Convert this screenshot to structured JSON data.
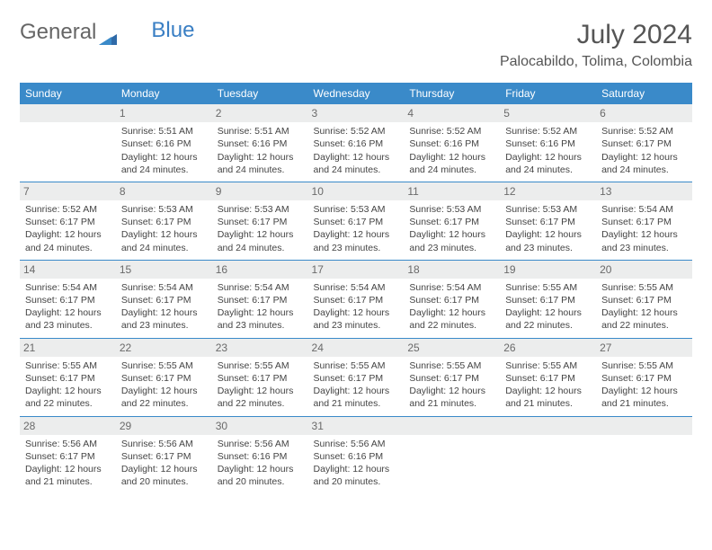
{
  "logo": {
    "word1": "General",
    "word2": "Blue"
  },
  "title": "July 2024",
  "subtitle": "Palocabildo, Tolima, Colombia",
  "colors": {
    "header_bg": "#3a8ac9",
    "header_text": "#ffffff",
    "daynum_bg": "#eceded",
    "daynum_text": "#6a6a6a",
    "cell_text": "#444444",
    "rule": "#3a8ac9",
    "logo_gray": "#666666",
    "logo_blue": "#3a7fc4"
  },
  "weekdays": [
    "Sunday",
    "Monday",
    "Tuesday",
    "Wednesday",
    "Thursday",
    "Friday",
    "Saturday"
  ],
  "weeks": [
    [
      {
        "day": "",
        "lines": []
      },
      {
        "day": "1",
        "lines": [
          "Sunrise: 5:51 AM",
          "Sunset: 6:16 PM",
          "Daylight: 12 hours",
          "and 24 minutes."
        ]
      },
      {
        "day": "2",
        "lines": [
          "Sunrise: 5:51 AM",
          "Sunset: 6:16 PM",
          "Daylight: 12 hours",
          "and 24 minutes."
        ]
      },
      {
        "day": "3",
        "lines": [
          "Sunrise: 5:52 AM",
          "Sunset: 6:16 PM",
          "Daylight: 12 hours",
          "and 24 minutes."
        ]
      },
      {
        "day": "4",
        "lines": [
          "Sunrise: 5:52 AM",
          "Sunset: 6:16 PM",
          "Daylight: 12 hours",
          "and 24 minutes."
        ]
      },
      {
        "day": "5",
        "lines": [
          "Sunrise: 5:52 AM",
          "Sunset: 6:16 PM",
          "Daylight: 12 hours",
          "and 24 minutes."
        ]
      },
      {
        "day": "6",
        "lines": [
          "Sunrise: 5:52 AM",
          "Sunset: 6:17 PM",
          "Daylight: 12 hours",
          "and 24 minutes."
        ]
      }
    ],
    [
      {
        "day": "7",
        "lines": [
          "Sunrise: 5:52 AM",
          "Sunset: 6:17 PM",
          "Daylight: 12 hours",
          "and 24 minutes."
        ]
      },
      {
        "day": "8",
        "lines": [
          "Sunrise: 5:53 AM",
          "Sunset: 6:17 PM",
          "Daylight: 12 hours",
          "and 24 minutes."
        ]
      },
      {
        "day": "9",
        "lines": [
          "Sunrise: 5:53 AM",
          "Sunset: 6:17 PM",
          "Daylight: 12 hours",
          "and 24 minutes."
        ]
      },
      {
        "day": "10",
        "lines": [
          "Sunrise: 5:53 AM",
          "Sunset: 6:17 PM",
          "Daylight: 12 hours",
          "and 23 minutes."
        ]
      },
      {
        "day": "11",
        "lines": [
          "Sunrise: 5:53 AM",
          "Sunset: 6:17 PM",
          "Daylight: 12 hours",
          "and 23 minutes."
        ]
      },
      {
        "day": "12",
        "lines": [
          "Sunrise: 5:53 AM",
          "Sunset: 6:17 PM",
          "Daylight: 12 hours",
          "and 23 minutes."
        ]
      },
      {
        "day": "13",
        "lines": [
          "Sunrise: 5:54 AM",
          "Sunset: 6:17 PM",
          "Daylight: 12 hours",
          "and 23 minutes."
        ]
      }
    ],
    [
      {
        "day": "14",
        "lines": [
          "Sunrise: 5:54 AM",
          "Sunset: 6:17 PM",
          "Daylight: 12 hours",
          "and 23 minutes."
        ]
      },
      {
        "day": "15",
        "lines": [
          "Sunrise: 5:54 AM",
          "Sunset: 6:17 PM",
          "Daylight: 12 hours",
          "and 23 minutes."
        ]
      },
      {
        "day": "16",
        "lines": [
          "Sunrise: 5:54 AM",
          "Sunset: 6:17 PM",
          "Daylight: 12 hours",
          "and 23 minutes."
        ]
      },
      {
        "day": "17",
        "lines": [
          "Sunrise: 5:54 AM",
          "Sunset: 6:17 PM",
          "Daylight: 12 hours",
          "and 23 minutes."
        ]
      },
      {
        "day": "18",
        "lines": [
          "Sunrise: 5:54 AM",
          "Sunset: 6:17 PM",
          "Daylight: 12 hours",
          "and 22 minutes."
        ]
      },
      {
        "day": "19",
        "lines": [
          "Sunrise: 5:55 AM",
          "Sunset: 6:17 PM",
          "Daylight: 12 hours",
          "and 22 minutes."
        ]
      },
      {
        "day": "20",
        "lines": [
          "Sunrise: 5:55 AM",
          "Sunset: 6:17 PM",
          "Daylight: 12 hours",
          "and 22 minutes."
        ]
      }
    ],
    [
      {
        "day": "21",
        "lines": [
          "Sunrise: 5:55 AM",
          "Sunset: 6:17 PM",
          "Daylight: 12 hours",
          "and 22 minutes."
        ]
      },
      {
        "day": "22",
        "lines": [
          "Sunrise: 5:55 AM",
          "Sunset: 6:17 PM",
          "Daylight: 12 hours",
          "and 22 minutes."
        ]
      },
      {
        "day": "23",
        "lines": [
          "Sunrise: 5:55 AM",
          "Sunset: 6:17 PM",
          "Daylight: 12 hours",
          "and 22 minutes."
        ]
      },
      {
        "day": "24",
        "lines": [
          "Sunrise: 5:55 AM",
          "Sunset: 6:17 PM",
          "Daylight: 12 hours",
          "and 21 minutes."
        ]
      },
      {
        "day": "25",
        "lines": [
          "Sunrise: 5:55 AM",
          "Sunset: 6:17 PM",
          "Daylight: 12 hours",
          "and 21 minutes."
        ]
      },
      {
        "day": "26",
        "lines": [
          "Sunrise: 5:55 AM",
          "Sunset: 6:17 PM",
          "Daylight: 12 hours",
          "and 21 minutes."
        ]
      },
      {
        "day": "27",
        "lines": [
          "Sunrise: 5:55 AM",
          "Sunset: 6:17 PM",
          "Daylight: 12 hours",
          "and 21 minutes."
        ]
      }
    ],
    [
      {
        "day": "28",
        "lines": [
          "Sunrise: 5:56 AM",
          "Sunset: 6:17 PM",
          "Daylight: 12 hours",
          "and 21 minutes."
        ]
      },
      {
        "day": "29",
        "lines": [
          "Sunrise: 5:56 AM",
          "Sunset: 6:17 PM",
          "Daylight: 12 hours",
          "and 20 minutes."
        ]
      },
      {
        "day": "30",
        "lines": [
          "Sunrise: 5:56 AM",
          "Sunset: 6:16 PM",
          "Daylight: 12 hours",
          "and 20 minutes."
        ]
      },
      {
        "day": "31",
        "lines": [
          "Sunrise: 5:56 AM",
          "Sunset: 6:16 PM",
          "Daylight: 12 hours",
          "and 20 minutes."
        ]
      },
      {
        "day": "",
        "lines": []
      },
      {
        "day": "",
        "lines": []
      },
      {
        "day": "",
        "lines": []
      }
    ]
  ]
}
